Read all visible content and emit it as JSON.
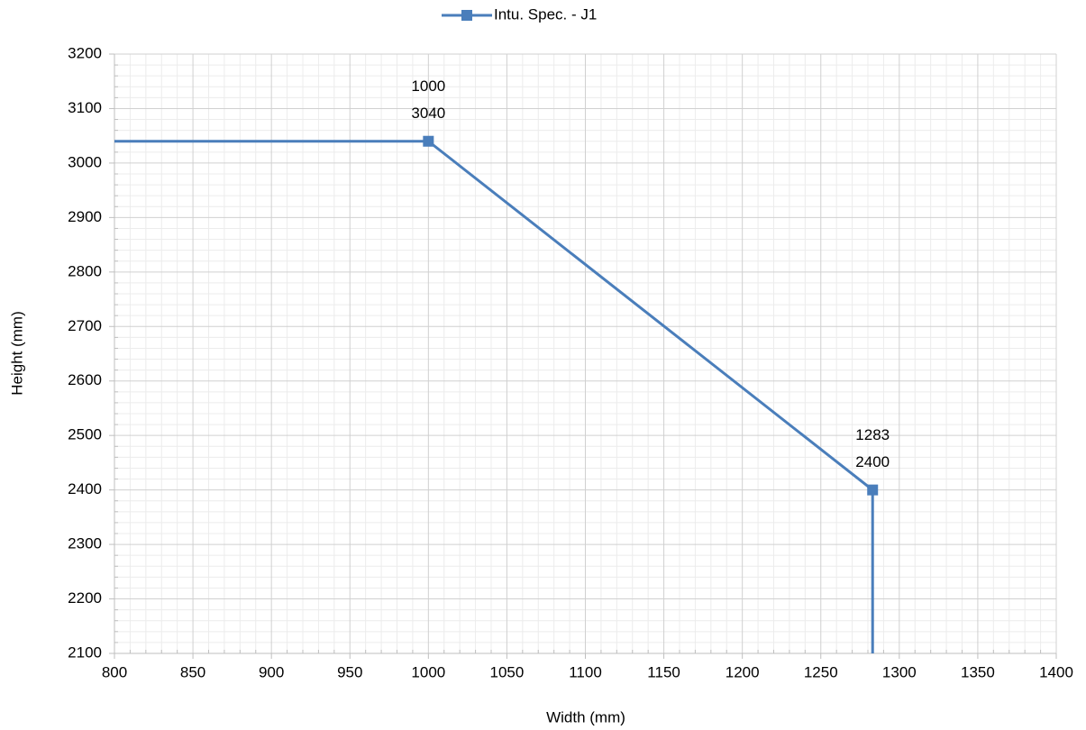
{
  "chart_data": {
    "type": "line",
    "legend": "top",
    "x": [
      800,
      1000,
      1283,
      1283
    ],
    "series": [
      {
        "name": "Intu. Spec. - J1",
        "color": "#4a7ebb",
        "values": [
          3040,
          3040,
          2400,
          2100
        ],
        "markers": [
          false,
          true,
          true,
          false
        ]
      }
    ],
    "x_label": "Width (mm)",
    "y_label": "Height (mm)",
    "xlim": [
      800,
      1400
    ],
    "xticks": [
      800,
      850,
      900,
      950,
      1000,
      1050,
      1100,
      1150,
      1200,
      1250,
      1300,
      1350,
      1400
    ],
    "ylim": [
      2100,
      3200
    ],
    "yticks": [
      2100,
      2200,
      2300,
      2400,
      2500,
      2600,
      2700,
      2800,
      2900,
      3000,
      3100,
      3200
    ],
    "grid": true,
    "minor_grid": true
  }
}
